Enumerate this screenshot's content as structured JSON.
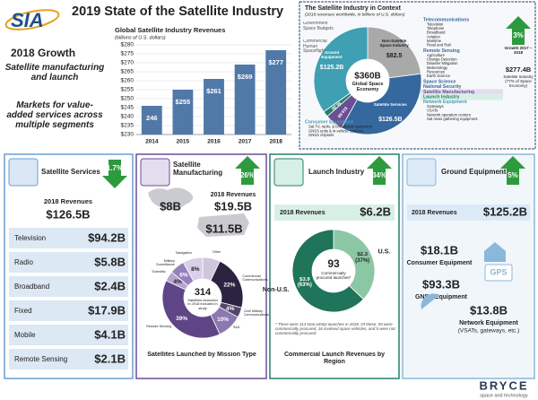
{
  "header": {
    "logo": "SIA",
    "title": "2019 State of the Satellite Industry"
  },
  "growth": {
    "title": "2018 Growth",
    "item1": "Satellite manufacturing and launch",
    "item2": "Markets for value-added services across multiple segments"
  },
  "chart_data": [
    {
      "type": "bar",
      "title": "Global Satellite Industry Revenues",
      "subtitle": "(billions of U.S. dollars)",
      "categories": [
        "2014",
        "2015",
        "2016",
        "2017",
        "2018"
      ],
      "values": [
        246,
        255,
        261,
        269,
        277
      ],
      "value_labels": [
        "246",
        "$255",
        "$261",
        "$269",
        "$277"
      ],
      "color": "#5079a8",
      "ylim": [
        230,
        280
      ],
      "yticks": [
        {
          "value": 230,
          "label": "$230"
        },
        {
          "value": 235,
          "label": "$235"
        },
        {
          "value": 240,
          "label": "$240"
        },
        {
          "value": 245,
          "label": "$245"
        },
        {
          "value": 250,
          "label": "$250"
        },
        {
          "value": 255,
          "label": "$255"
        },
        {
          "value": 260,
          "label": "$260"
        },
        {
          "value": 265,
          "label": "$265"
        },
        {
          "value": 270,
          "label": "$270"
        },
        {
          "value": 275,
          "label": "$275"
        },
        {
          "value": 280,
          "label": "$280"
        }
      ],
      "grid": true
    },
    {
      "type": "donut",
      "title": "The Satellite Industry in Context",
      "subtitle": "(2018 revenues worldwide, in billions of U.S. dollars)",
      "categories": [
        "Non-Satellite Space Industry",
        "Satellite Services",
        "Satellite Manufacturing",
        "Launch Industry",
        "Ground Equipment"
      ],
      "values": [
        82.5,
        126.5,
        19.5,
        6.2,
        125.2
      ],
      "value_labels": [
        "$82.5",
        "$126.5B",
        "$19.5B",
        "$6.2B",
        "$125.2B"
      ],
      "colors": [
        "#a9a9a9",
        "#35689e",
        "#6a4f95",
        "#23806a",
        "#3f9fb3"
      ],
      "center_value": "$360B",
      "center_label": "Global Space Economy"
    },
    {
      "type": "donut",
      "categories": [
        "Other",
        "Commercial Communications",
        "Civil/ Military Communications",
        "R&D",
        "Remote Sensing",
        "Scientific",
        "Military Surveillance",
        "Navigation"
      ],
      "values": [
        7,
        22,
        4,
        10,
        39,
        4,
        6,
        8
      ],
      "value_labels": [
        null,
        "22%",
        "4%",
        "10%",
        "39%",
        "4%",
        "6%",
        "8%"
      ],
      "colors": [
        "#cfc6de",
        "#2b2340",
        "#54466f",
        "#8b78ae",
        "#5e4585",
        "#b5a4d0",
        "#9480bd",
        "#d9cfe8"
      ],
      "center_value": 314,
      "center_label": "Satellites launched in 2018 included in study",
      "caption": "Satellites Launched by Mission Type"
    },
    {
      "type": "donut",
      "categories": [
        "U.S.",
        "Non-U.S."
      ],
      "values": [
        2.3,
        3.9
      ],
      "value_labels": [
        "$2.3 (37%)",
        "$3.9 (63%)"
      ],
      "colors": [
        "#8cc7a5",
        "#1f7459"
      ],
      "center_value": 93,
      "center_label": "Commercially procured launches*",
      "caption": "Commercial Launch Revenues by Region"
    }
  ],
  "context": {
    "left_labels": [
      "Government Space Budgets",
      "Commercial Human Spaceflight"
    ],
    "groups": [
      {
        "title": "Telecommunications",
        "items": [
          "Television",
          "Telephone",
          "Broadband",
          "Aviation",
          "Maritime",
          "Road and Rail"
        ]
      },
      {
        "title": "Remote Sensing",
        "items": [
          "Agriculture",
          "Change Detection",
          "Disaster Mitigation",
          "Meteorology",
          "Resources",
          "Earth Science"
        ]
      }
    ],
    "extra_labels": [
      "Space Science",
      "National Security"
    ],
    "network": {
      "title": "Network Equipment",
      "items": [
        "Gateways",
        "VSATs",
        "Network operation centers",
        "Sat news gathering equipment"
      ]
    },
    "consumer": {
      "title": "Consumer Equipment",
      "items": [
        "Sat TV, radio, & broadband equipment",
        "GNSS units & in-vehicle systems",
        "GNSS chipsets"
      ]
    },
    "growth": "3%",
    "growth_label": "Growth 2017 – 2018",
    "industry_value": "$277.4B",
    "industry_label": "Satellite Industry (77% of Space Economy)"
  },
  "services": {
    "title": "Satellite Services",
    "growth": "1.7%",
    "revenue_label": "2018 Revenues",
    "revenue": "$126.5B",
    "rows": [
      [
        "Television",
        "$94.2B"
      ],
      [
        "Radio",
        "$5.8B"
      ],
      [
        "Broadband",
        "$2.4B"
      ],
      [
        "Fixed",
        "$17.9B"
      ],
      [
        "Mobile",
        "$4.1B"
      ],
      [
        "Remote Sensing",
        "$2.1B"
      ]
    ]
  },
  "manufacturing": {
    "title": "Satellite Manufacturing",
    "growth": "26%",
    "revenue_label": "2018 Revenues",
    "revenue": "$19.5B",
    "world_value": "$8B",
    "us_value": "$11.5B"
  },
  "launch": {
    "title": "Launch Industry",
    "growth": "34%",
    "revenue_label": "2018 Revenues",
    "revenue": "$6.2B",
    "note": "* There were 114 total orbital launches in 2018. Of these, 93 were commercially procured, 16 involved space vehicles, and 5 were not commercially procured"
  },
  "ground": {
    "title": "Ground Equipment",
    "growth": "5%",
    "revenue_label": "2018 Revenues",
    "revenue": "$125.2B",
    "segments": [
      {
        "value": "$18.1B",
        "label": "Consumer Equipment"
      },
      {
        "value": "$93.3B",
        "label": "GNSS Equipment"
      },
      {
        "value": "$13.8B",
        "label": "Network Equipment",
        "detail": "(VSATs, gateways, etc.)"
      }
    ],
    "gps_icon": "GPS"
  },
  "footer": {
    "brand": "BRYCE",
    "tagline": "space and technology"
  }
}
